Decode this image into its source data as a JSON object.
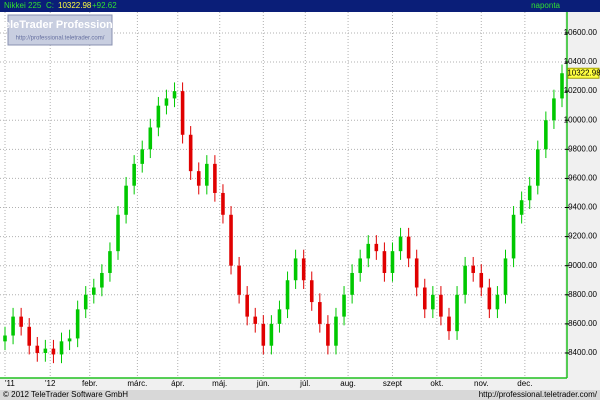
{
  "chart_data": {
    "type": "candlestick",
    "symbol": "Nikkei 225",
    "close_prefix": "C:",
    "change": "+92.62",
    "period": "naponta",
    "watermark_title": "TeleTrader Professional",
    "watermark_url": "http://professional.teletrader.com/",
    "footer_left": "© 2012 TeleTrader Software GmbH",
    "footer_right": "http://professional.teletrader.com/",
    "up_color": "#00c800",
    "down_color": "#e00000",
    "grid": true,
    "open": [
      8480,
      8520,
      8650,
      8580,
      8450,
      8400,
      8430,
      8390,
      8480,
      8500,
      8700,
      8800,
      8850,
      8950,
      9100,
      9350,
      9550,
      9700,
      9800,
      9950,
      10100,
      10150,
      10200,
      9900,
      9650,
      9550,
      9700,
      9500,
      9350,
      9000,
      8800,
      8650,
      8600,
      8450,
      8600,
      8700,
      8900,
      9050,
      8900,
      8750,
      8600,
      8450,
      8650,
      8800,
      8950,
      9050,
      9150,
      9100,
      8950,
      9100,
      9200,
      9050,
      8850,
      8700,
      8800,
      8650,
      8550,
      8800,
      9000,
      8950,
      8850,
      8700,
      8800,
      9050,
      9350,
      9450,
      9550,
      9800,
      10000,
      10150
    ],
    "high": [
      8580,
      8710,
      8710,
      8640,
      8510,
      8490,
      8490,
      8540,
      8560,
      8760,
      8860,
      8910,
      9010,
      9160,
      9410,
      9610,
      9760,
      9860,
      10010,
      10160,
      10210,
      10260,
      10260,
      9960,
      9710,
      9760,
      9760,
      9560,
      9410,
      9060,
      8860,
      8710,
      8660,
      8660,
      8760,
      8960,
      9110,
      9110,
      8960,
      8810,
      8660,
      8710,
      8860,
      9010,
      9110,
      9210,
      9210,
      9160,
      9160,
      9260,
      9260,
      9110,
      8910,
      8860,
      8860,
      8710,
      8860,
      9060,
      9060,
      9010,
      8910,
      8860,
      9110,
      9410,
      9510,
      9610,
      9860,
      10060,
      10210,
      10383
    ],
    "low": [
      8420,
      8460,
      8520,
      8390,
      8340,
      8340,
      8330,
      8330,
      8420,
      8440,
      8640,
      8740,
      8790,
      8890,
      9040,
      9290,
      9490,
      9640,
      9740,
      9890,
      10040,
      10090,
      9840,
      9590,
      9490,
      9490,
      9440,
      9290,
      8940,
      8740,
      8590,
      8540,
      8390,
      8390,
      8540,
      8640,
      8840,
      8840,
      8690,
      8540,
      8390,
      8390,
      8590,
      8740,
      8890,
      8990,
      9040,
      8890,
      8890,
      9040,
      8990,
      8790,
      8640,
      8640,
      8590,
      8490,
      8490,
      8740,
      8890,
      8790,
      8640,
      8640,
      8740,
      8990,
      9290,
      9390,
      9490,
      9740,
      9940,
      10090
    ],
    "close": [
      8520,
      8650,
      8580,
      8450,
      8400,
      8430,
      8390,
      8480,
      8500,
      8700,
      8800,
      8850,
      8950,
      9100,
      9350,
      9550,
      9700,
      9800,
      9950,
      10100,
      10150,
      10200,
      9900,
      9650,
      9550,
      9700,
      9500,
      9350,
      9000,
      8800,
      8650,
      8600,
      8450,
      8600,
      8700,
      8900,
      9050,
      8900,
      8750,
      8600,
      8450,
      8650,
      8800,
      8950,
      9050,
      9150,
      9100,
      8950,
      9100,
      9200,
      9050,
      8850,
      8700,
      8800,
      8650,
      8550,
      8800,
      9000,
      8950,
      8850,
      8700,
      8800,
      9050,
      9350,
      9450,
      9550,
      9800,
      10000,
      10150,
      10322.98
    ],
    "xlim": [
      0,
      69
    ],
    "xticks": [
      {
        "value": 0,
        "label": "'11"
      },
      {
        "value": 5.6,
        "label": "'12"
      },
      {
        "value": 10.5,
        "label": "febr."
      },
      {
        "value": 16.4,
        "label": "márc."
      },
      {
        "value": 21.4,
        "label": "ápr."
      },
      {
        "value": 26.6,
        "label": "máj."
      },
      {
        "value": 32,
        "label": "jún."
      },
      {
        "value": 37.2,
        "label": "júl."
      },
      {
        "value": 42.5,
        "label": "aug."
      },
      {
        "value": 48,
        "label": "szept"
      },
      {
        "value": 53.5,
        "label": "okt."
      },
      {
        "value": 59,
        "label": "nov."
      },
      {
        "value": 64.4,
        "label": "dec."
      }
    ],
    "ylim": [
      8228,
      10744
    ],
    "yticks": [
      {
        "value": 8400,
        "label": "8400.00"
      },
      {
        "value": 8600,
        "label": "8600.00"
      },
      {
        "value": 8800,
        "label": "8800.00"
      },
      {
        "value": 9000,
        "label": "9000.00"
      },
      {
        "value": 9200,
        "label": "9200.00"
      },
      {
        "value": 9400,
        "label": "9400.00"
      },
      {
        "value": 9600,
        "label": "9600.00"
      },
      {
        "value": 9800,
        "label": "9800.00"
      },
      {
        "value": 10000,
        "label": "10000.00"
      },
      {
        "value": 10200,
        "label": "10200.00"
      },
      {
        "value": 10400,
        "label": "10400.00"
      },
      {
        "value": 10600,
        "label": "10600.00"
      }
    ]
  }
}
